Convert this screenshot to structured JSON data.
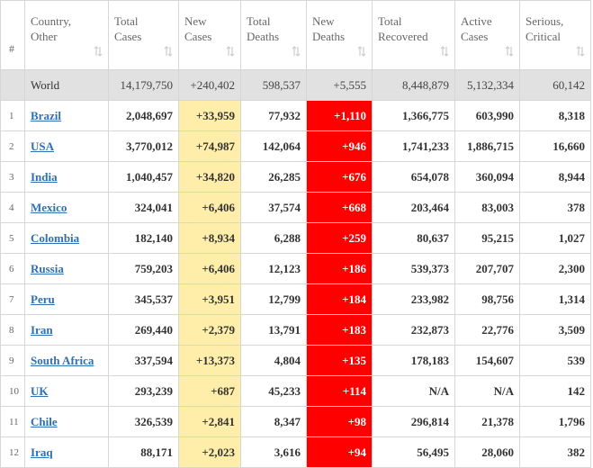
{
  "table": {
    "header": [
      [
        "#"
      ],
      [
        "Country,",
        "Other"
      ],
      [
        "Total",
        "Cases"
      ],
      [
        "New",
        "Cases"
      ],
      [
        "Total",
        "Deaths"
      ],
      [
        "New",
        "Deaths"
      ],
      [
        "Total",
        "Recovered"
      ],
      [
        "Active",
        "Cases"
      ],
      [
        "Serious,",
        "Critical"
      ]
    ],
    "world": [
      "World",
      "14,179,750",
      "+240,402",
      "598,537",
      "+5,555",
      "8,448,879",
      "5,132,334",
      "60,142"
    ],
    "rows": [
      [
        "1",
        "Brazil",
        "2,048,697",
        "+33,959",
        "77,932",
        "+1,110",
        "1,366,775",
        "603,990",
        "8,318"
      ],
      [
        "2",
        "USA",
        "3,770,012",
        "+74,987",
        "142,064",
        "+946",
        "1,741,233",
        "1,886,715",
        "16,660"
      ],
      [
        "3",
        "India",
        "1,040,457",
        "+34,820",
        "26,285",
        "+676",
        "654,078",
        "360,094",
        "8,944"
      ],
      [
        "4",
        "Mexico",
        "324,041",
        "+6,406",
        "37,574",
        "+668",
        "203,464",
        "83,003",
        "378"
      ],
      [
        "5",
        "Colombia",
        "182,140",
        "+8,934",
        "6,288",
        "+259",
        "80,637",
        "95,215",
        "1,027"
      ],
      [
        "6",
        "Russia",
        "759,203",
        "+6,406",
        "12,123",
        "+186",
        "539,373",
        "207,707",
        "2,300"
      ],
      [
        "7",
        "Peru",
        "345,537",
        "+3,951",
        "12,799",
        "+184",
        "233,982",
        "98,756",
        "1,314"
      ],
      [
        "8",
        "Iran",
        "269,440",
        "+2,379",
        "13,791",
        "+183",
        "232,873",
        "22,776",
        "3,509"
      ],
      [
        "9",
        "South Africa",
        "337,594",
        "+13,373",
        "4,804",
        "+135",
        "178,183",
        "154,607",
        "539"
      ],
      [
        "10",
        "UK",
        "293,239",
        "+687",
        "45,233",
        "+114",
        "N/A",
        "N/A",
        "142"
      ],
      [
        "11",
        "Chile",
        "326,539",
        "+2,841",
        "8,347",
        "+98",
        "296,814",
        "21,378",
        "1,796"
      ],
      [
        "12",
        "Iraq",
        "88,171",
        "+2,023",
        "3,616",
        "+94",
        "56,495",
        "28,060",
        "382"
      ]
    ]
  }
}
